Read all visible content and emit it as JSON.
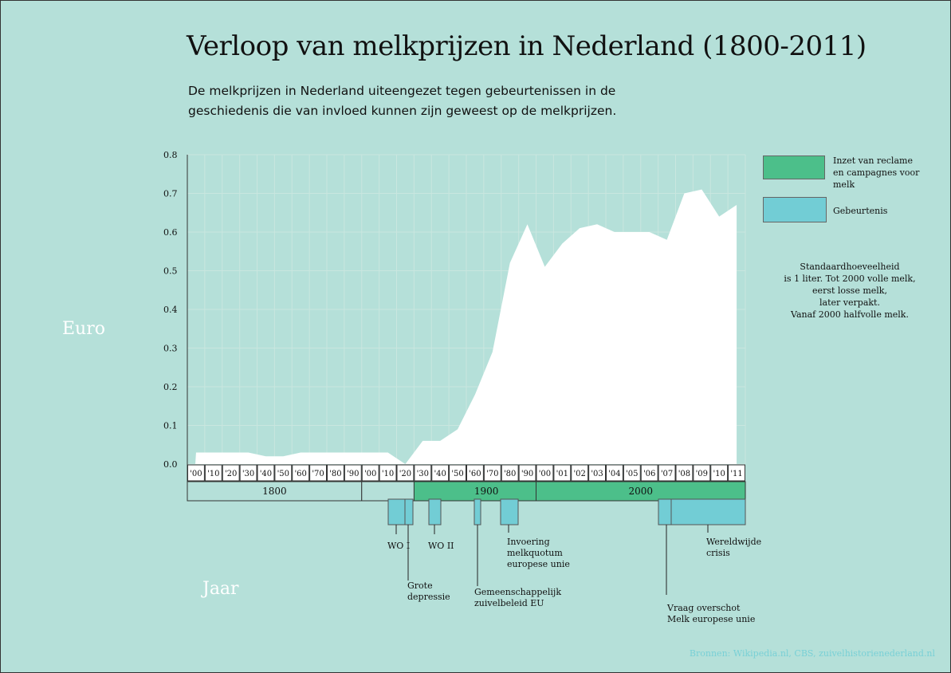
{
  "title": "Verloop van melkprijzen in Nederland (1800-2011)",
  "subtitle": "De melkprijzen in Nederland uiteengezet tegen gebeurtenissen in de geschiedenis die van invloed kunnen zijn geweest op de melkprijzen.",
  "source": "Bronnen: Wikipedia.nl, CBS, zuivelhistorienederland.nl",
  "note_lines": [
    "Standaardhoeveelheid",
    "is 1 liter. Tot 2000 volle melk,",
    "eerst losse melk,",
    "later verpakt.",
    "Vanaf 2000 halfvolle melk."
  ],
  "legend": [
    {
      "label": "Inzet van reclame en campagnes voor melk",
      "color": "#4cbf8a"
    },
    {
      "label": "Gebeurtenis",
      "color": "#72cdd5"
    }
  ],
  "colors": {
    "background": "#b5e0d9",
    "area": "#ffffff",
    "campaign": "#4cbf8a",
    "event": "#72cdd5",
    "grid": "#c9e6df"
  },
  "chart_data": {
    "type": "area",
    "title": "Verloop van melkprijzen in Nederland (1800-2011)",
    "xlabel": "Jaar",
    "ylabel": "Euro",
    "ylim": [
      0,
      0.8
    ],
    "yticks": [
      "0.0",
      "0.1",
      "0.2",
      "0.3",
      "0.4",
      "0.5",
      "0.6",
      "0.7",
      "0.8"
    ],
    "categories": [
      "'00",
      "'10",
      "'20",
      "'30",
      "'40",
      "'50",
      "'60",
      "'70",
      "'80",
      "'90",
      "'00",
      "'10",
      "'20",
      "'30",
      "'40",
      "'50",
      "'60",
      "'70",
      "'80",
      "'90",
      "'00",
      "'01",
      "'02",
      "'03",
      "'04",
      "'05",
      "'06",
      "'07",
      "'08",
      "'09",
      "'10",
      "'11"
    ],
    "series": [
      {
        "values": [
          0.03,
          0.03,
          0.03,
          0.03,
          0.02,
          0.02,
          0.03,
          0.03,
          0.03,
          0.03,
          0.03,
          0.03,
          0.0,
          0.06,
          0.06,
          0.09,
          0.18,
          0.29,
          0.52,
          0.62,
          0.51,
          0.57,
          0.61,
          0.62,
          0.6,
          0.6,
          0.6,
          0.58,
          0.7,
          0.71,
          0.64,
          0.67
        ]
      }
    ],
    "centuries": [
      {
        "label": "1800",
        "start": 0,
        "end": 9,
        "campaign": false
      },
      {
        "label": "1900",
        "start": 10,
        "end": 19,
        "campaign": true,
        "campaign_start": 13
      },
      {
        "label": "2000",
        "start": 20,
        "end": 31,
        "campaign": true
      }
    ],
    "events": [
      {
        "label": "WO I",
        "lines": [
          "WO I"
        ]
      },
      {
        "label": "Grote depressie",
        "lines": [
          "Grote",
          "depressie"
        ]
      },
      {
        "label": "WO II",
        "lines": [
          "WO II"
        ]
      },
      {
        "label": "Gemeenschappelijk zuivelbeleid EU",
        "lines": [
          "Gemeenschappelijk",
          "zuivelbeleid EU"
        ]
      },
      {
        "label": "Invoering melkquotum europese unie",
        "lines": [
          "Invoering",
          "melkquotum",
          "europese unie"
        ]
      },
      {
        "label": "Vraag overschot Melk europese unie",
        "lines": [
          "Vraag overschot",
          "Melk europese unie"
        ]
      },
      {
        "label": "Wereldwijde crisis",
        "lines": [
          "Wereldwijde",
          "crisis"
        ]
      }
    ]
  }
}
